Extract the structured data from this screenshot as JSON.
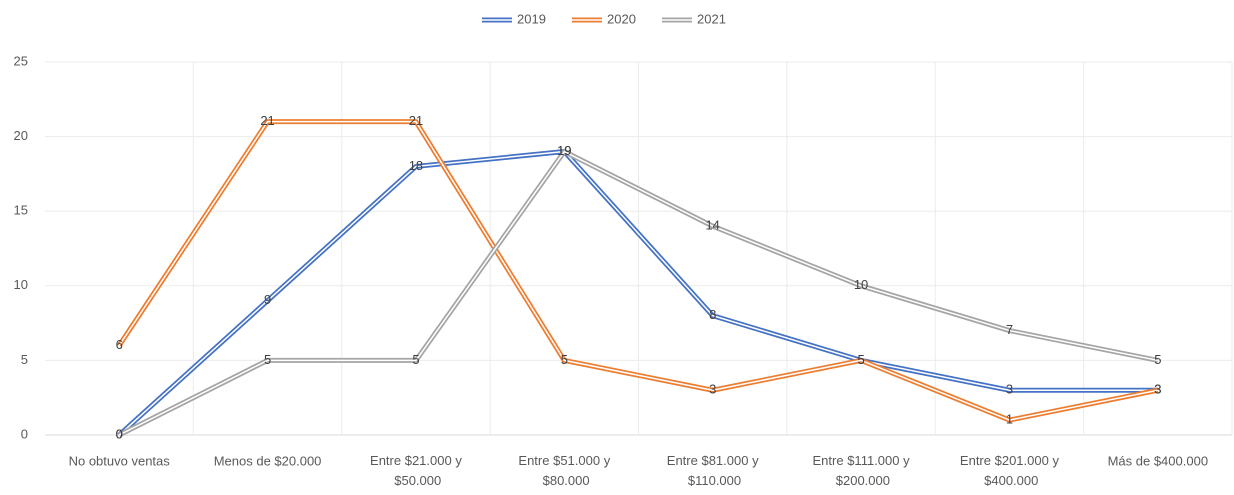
{
  "chart_data": {
    "type": "line",
    "categories": [
      "No obtuvo ventas",
      "Menos de $20.000",
      "Entre $21.000 y $50.000",
      "Entre $51.000 y $80.000",
      "Entre $81.000 y $110.000",
      "Entre $111.000 y $200.000",
      "Entre $201.000 y $400.000",
      "Más de $400.000"
    ],
    "series": [
      {
        "name": "2019",
        "color": "#4472c4",
        "values": [
          0,
          9,
          18,
          19,
          8,
          5,
          3,
          3
        ]
      },
      {
        "name": "2020",
        "color": "#ed7d31",
        "values": [
          6,
          21,
          21,
          5,
          3,
          5,
          1,
          3
        ]
      },
      {
        "name": "2021",
        "color": "#a5a5a5",
        "values": [
          0,
          5,
          5,
          19,
          14,
          10,
          7,
          5
        ]
      }
    ],
    "ylim": [
      0,
      25
    ],
    "yticks": [
      0,
      5,
      10,
      15,
      20,
      25
    ],
    "grid": true,
    "legend": "top"
  }
}
